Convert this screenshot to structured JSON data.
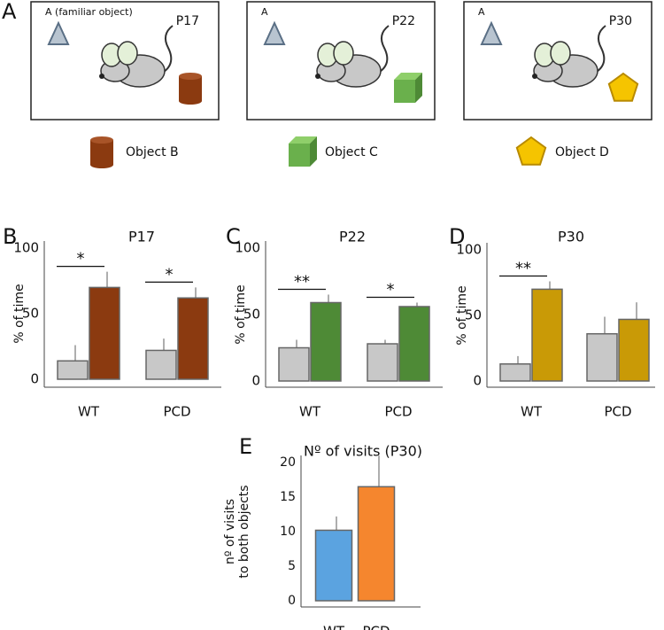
{
  "arena": {
    "label": "A",
    "boxes": [
      {
        "age": "P17",
        "familiar": "A (familiar object)"
      },
      {
        "age": "P22",
        "familiar": "A"
      },
      {
        "age": "P30",
        "familiar": "A"
      }
    ],
    "legend": [
      "Object B",
      "Object C",
      "Object D"
    ]
  },
  "chart_data": [
    {
      "type": "bar",
      "panel": "B",
      "title": "P17",
      "y_label": "% of time",
      "categories": [
        "WT",
        "PCD"
      ],
      "series": [
        {
          "color": "#c8c8c8",
          "values": [
            14,
            22
          ],
          "errors": [
            12,
            9
          ]
        },
        {
          "color": "#8b3a10",
          "values": [
            70,
            62
          ],
          "errors": [
            12,
            8
          ]
        }
      ],
      "annotations": [
        "*",
        "*"
      ],
      "ylim": [
        0,
        100
      ],
      "yticks": [
        0,
        50,
        100
      ]
    },
    {
      "type": "bar",
      "panel": "C",
      "title": "P22",
      "y_label": "% of time",
      "categories": [
        "WT",
        "PCD"
      ],
      "series": [
        {
          "color": "#c8c8c8",
          "values": [
            25,
            28
          ],
          "errors": [
            6,
            3
          ]
        },
        {
          "color": "#4e8a36",
          "values": [
            59,
            56
          ],
          "errors": [
            6,
            3
          ]
        }
      ],
      "annotations": [
        "**",
        "*"
      ],
      "ylim": [
        0,
        100
      ],
      "yticks": [
        0,
        50,
        100
      ]
    },
    {
      "type": "bar",
      "panel": "D",
      "title": "P30",
      "y_label": "% of time",
      "categories": [
        "WT",
        "PCD"
      ],
      "series": [
        {
          "color": "#c8c8c8",
          "values": [
            13,
            36
          ],
          "errors": [
            6,
            13
          ]
        },
        {
          "color": "#c99a06",
          "values": [
            70,
            47
          ],
          "errors": [
            6,
            13
          ]
        }
      ],
      "annotations": [
        "**",
        null
      ],
      "ylim": [
        0,
        100
      ],
      "yticks": [
        0,
        50,
        100
      ]
    },
    {
      "type": "bar",
      "panel": "E",
      "title": "Nº of visits (P30)",
      "y_label": [
        "nº of visits",
        "to both objects"
      ],
      "categories": [
        "WT",
        "PCD"
      ],
      "series": [
        {
          "colors": [
            "#5ba3e0",
            "#f5862e"
          ],
          "values": [
            10.2,
            16.5
          ],
          "errors": [
            2,
            4.5
          ]
        }
      ],
      "ylim": [
        0,
        20
      ],
      "yticks": [
        0,
        5,
        10,
        15,
        20
      ]
    }
  ]
}
